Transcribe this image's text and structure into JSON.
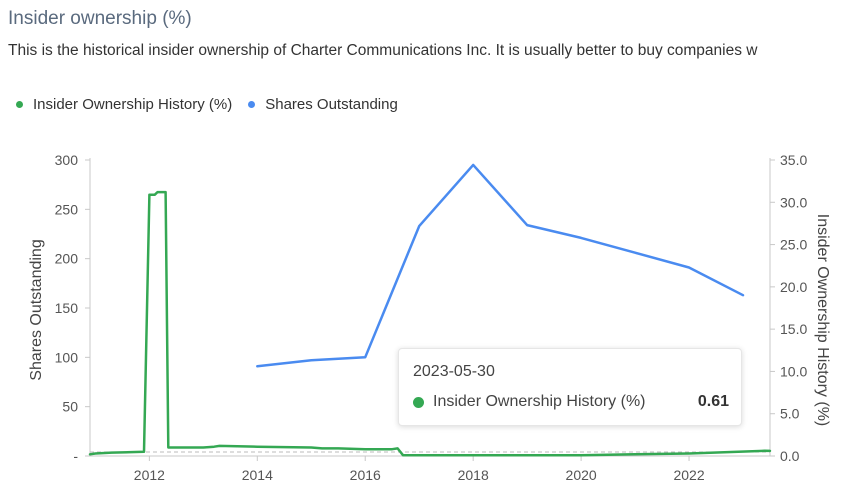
{
  "header": {
    "title": "Insider ownership (%)",
    "description": "This is the historical insider ownership of Charter Communications Inc. It is usually better to buy companies w"
  },
  "legend": {
    "insider_label": "Insider Ownership History (%)",
    "shares_label": "Shares Outstanding"
  },
  "colors": {
    "insider": "#34a853",
    "shares": "#4a8bf0"
  },
  "tooltip": {
    "date": "2023-05-30",
    "series_label": "Insider Ownership History (%)",
    "value": "0.61"
  },
  "chart_data": {
    "type": "line",
    "x_ticks": [
      "2012",
      "2014",
      "2016",
      "2018",
      "2020",
      "2022"
    ],
    "y_left": {
      "label": "Shares Outstanding",
      "ticks": [
        "300",
        "250",
        "200",
        "150",
        "100",
        "50",
        "-"
      ],
      "range": [
        0,
        300
      ]
    },
    "y_right": {
      "label": "Insider Ownership History (%)",
      "ticks": [
        "35.0",
        "30.0",
        "25.0",
        "20.0",
        "15.0",
        "10.0",
        "5.0",
        "0.0"
      ],
      "range": [
        0,
        35
      ]
    },
    "xlim": [
      2010.9,
      2023.5
    ],
    "grid": false,
    "legend_position": "top-left",
    "series": [
      {
        "name": "Insider Ownership History (%)",
        "axis": "right",
        "points": [
          [
            2010.9,
            0.2
          ],
          [
            2011.0,
            0.3
          ],
          [
            2011.3,
            0.4
          ],
          [
            2011.9,
            0.5
          ],
          [
            2012.0,
            30.9
          ],
          [
            2012.1,
            30.9
          ],
          [
            2012.15,
            31.2
          ],
          [
            2012.3,
            31.2
          ],
          [
            2012.35,
            1.0
          ],
          [
            2013.0,
            1.0
          ],
          [
            2013.2,
            1.1
          ],
          [
            2013.3,
            1.2
          ],
          [
            2014.0,
            1.1
          ],
          [
            2015.0,
            1.0
          ],
          [
            2015.2,
            0.9
          ],
          [
            2015.5,
            0.9
          ],
          [
            2016.0,
            0.8
          ],
          [
            2016.5,
            0.8
          ],
          [
            2016.6,
            0.9
          ],
          [
            2016.7,
            0.1
          ],
          [
            2017.0,
            0.1
          ],
          [
            2018.0,
            0.1
          ],
          [
            2019.0,
            0.1
          ],
          [
            2020.0,
            0.1
          ],
          [
            2021.0,
            0.2
          ],
          [
            2022.0,
            0.3
          ],
          [
            2023.4,
            0.61
          ],
          [
            2023.5,
            0.6
          ]
        ]
      },
      {
        "name": "Shares Outstanding",
        "axis": "left",
        "points": [
          [
            2014.0,
            91
          ],
          [
            2015.0,
            97
          ],
          [
            2016.0,
            100
          ],
          [
            2017.0,
            233
          ],
          [
            2018.0,
            295
          ],
          [
            2019.0,
            234
          ],
          [
            2020.0,
            221
          ],
          [
            2021.0,
            206
          ],
          [
            2022.0,
            191
          ],
          [
            2023.0,
            163
          ]
        ]
      }
    ]
  }
}
